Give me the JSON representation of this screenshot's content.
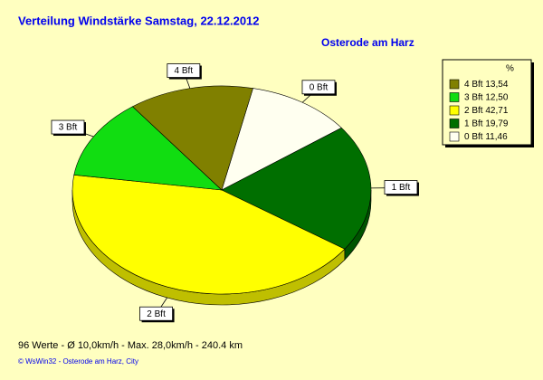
{
  "chart_data": {
    "type": "pie",
    "title": "Verteilung Windstärke  Samstag, 22.12.2012",
    "subtitle": "Osterode am Harz",
    "legend_title": "%",
    "categories": [
      "4 Bft",
      "3 Bft",
      "2 Bft",
      "1 Bft",
      "0 Bft"
    ],
    "values": [
      13.54,
      12.5,
      42.71,
      19.79,
      11.46
    ],
    "value_labels": [
      "13,54",
      "12,50",
      "42,71",
      "19,79",
      "11,46"
    ],
    "colors": [
      "#808000",
      "#11dd11",
      "#ffff00",
      "#006f00",
      "#fffff0"
    ],
    "footer": "96 Werte   -   Ø 10,0km/h  -  Max. 28,0km/h   -   240.4 km",
    "credit": "© WsWin32  -  Osterode am Harz, City",
    "legend": "top-right"
  }
}
